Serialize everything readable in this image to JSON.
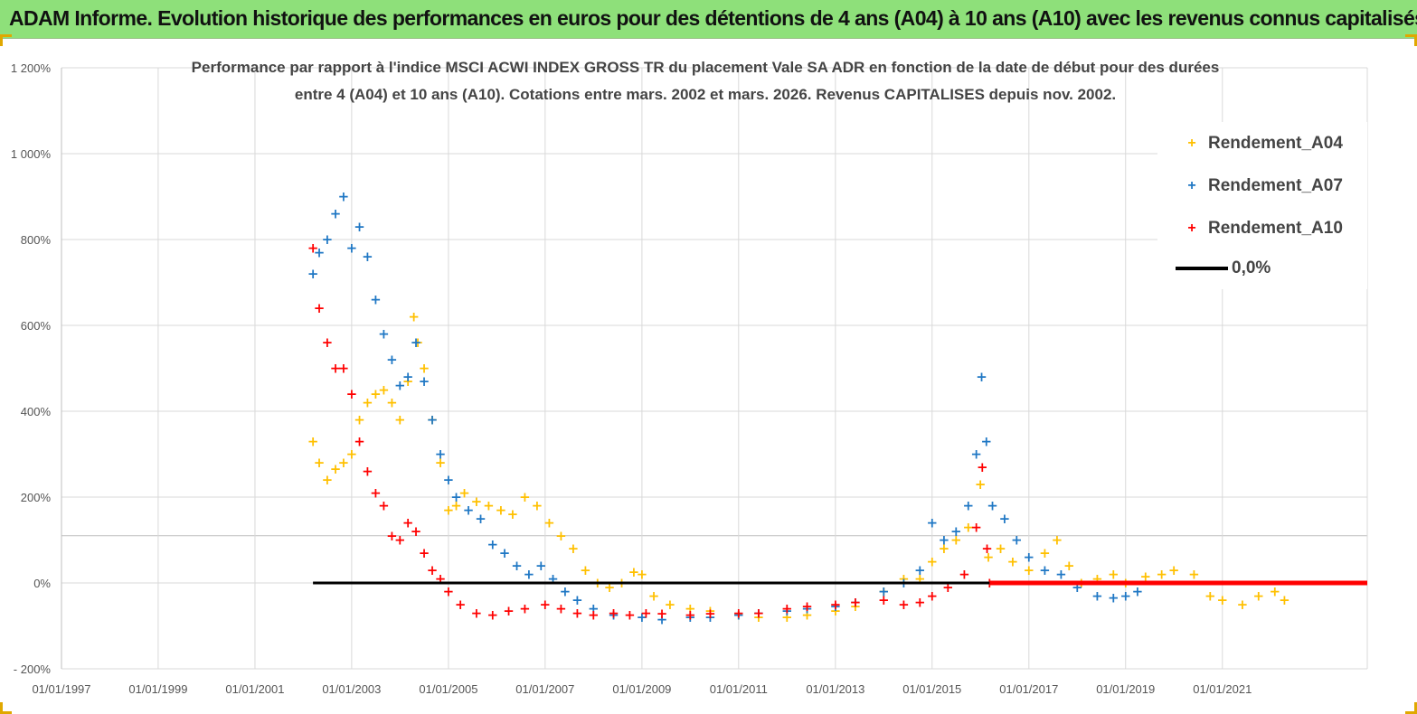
{
  "banner": {
    "title": "ADAM Informe. Evolution historique des performances en euros pour des détentions de 4 ans (A04) à 10 ans (A10) avec les revenus connus capitalisés"
  },
  "colors": {
    "banner_bg": "#8ee07a",
    "A04": "#ffc000",
    "A07": "#1f77c4",
    "A10": "#ff0000",
    "zero_line": "#000000",
    "grid": "#d9d9d9"
  },
  "chart_data": {
    "type": "scatter",
    "title_lines": [
      "Performance par rapport à l'indice MSCI ACWI INDEX GROSS TR  du placement Vale SA ADR en fonction de la date de début pour des durées",
      "entre 4 (A04) et 10 ans (A10). Cotations entre mars. 2002 et mars. 2026. Revenus CAPITALISES depuis nov. 2002."
    ],
    "y_ticks": [
      "- 200%",
      "0%",
      "200%",
      "400%",
      "600%",
      "800%",
      "1 000%",
      "1 200%"
    ],
    "y_tick_values": [
      -200,
      0,
      200,
      400,
      600,
      800,
      1000,
      1200
    ],
    "ylim": [
      -200,
      1200
    ],
    "x_ticks": [
      "01/01/1997",
      "01/01/1999",
      "01/01/2001",
      "01/01/2003",
      "01/01/2005",
      "01/01/2007",
      "01/01/2009",
      "01/01/2011",
      "01/01/2013",
      "01/01/2015",
      "01/01/2017",
      "01/01/2019",
      "01/01/2021"
    ],
    "xlim": [
      "1997-01-01",
      "2023-12-31"
    ],
    "grid": true,
    "legend_position": "top-right",
    "series": [
      {
        "name": "Rendement_A04",
        "marker": "+",
        "points": [
          [
            "2002-03-15",
            330
          ],
          [
            "2002-05-01",
            280
          ],
          [
            "2002-07-01",
            240
          ],
          [
            "2002-09-01",
            265
          ],
          [
            "2002-11-01",
            280
          ],
          [
            "2003-01-01",
            300
          ],
          [
            "2003-03-01",
            380
          ],
          [
            "2003-05-01",
            420
          ],
          [
            "2003-07-01",
            440
          ],
          [
            "2003-09-01",
            450
          ],
          [
            "2003-11-01",
            420
          ],
          [
            "2004-01-01",
            380
          ],
          [
            "2004-03-01",
            470
          ],
          [
            "2004-04-15",
            620
          ],
          [
            "2004-05-15",
            560
          ],
          [
            "2004-07-01",
            500
          ],
          [
            "2004-09-01",
            380
          ],
          [
            "2004-11-01",
            280
          ],
          [
            "2005-01-01",
            170
          ],
          [
            "2005-03-01",
            180
          ],
          [
            "2005-05-01",
            210
          ],
          [
            "2005-08-01",
            190
          ],
          [
            "2005-11-01",
            180
          ],
          [
            "2006-02-01",
            170
          ],
          [
            "2006-05-01",
            160
          ],
          [
            "2006-08-01",
            200
          ],
          [
            "2006-11-01",
            180
          ],
          [
            "2007-02-01",
            140
          ],
          [
            "2007-05-01",
            110
          ],
          [
            "2007-08-01",
            80
          ],
          [
            "2007-11-01",
            30
          ],
          [
            "2008-02-01",
            0
          ],
          [
            "2008-05-01",
            -10
          ],
          [
            "2008-08-01",
            0
          ],
          [
            "2008-11-01",
            25
          ],
          [
            "2009-01-01",
            20
          ],
          [
            "2009-04-01",
            -30
          ],
          [
            "2009-08-01",
            -50
          ],
          [
            "2010-01-01",
            -60
          ],
          [
            "2010-06-01",
            -65
          ],
          [
            "2011-01-01",
            -75
          ],
          [
            "2011-06-01",
            -80
          ],
          [
            "2012-01-01",
            -80
          ],
          [
            "2012-06-01",
            -75
          ],
          [
            "2013-01-01",
            -65
          ],
          [
            "2013-06-01",
            -55
          ],
          [
            "2014-01-01",
            -20
          ],
          [
            "2014-06-01",
            10
          ],
          [
            "2014-10-01",
            10
          ],
          [
            "2015-01-01",
            50
          ],
          [
            "2015-04-01",
            80
          ],
          [
            "2015-07-01",
            100
          ],
          [
            "2015-10-01",
            130
          ],
          [
            "2016-01-01",
            230
          ],
          [
            "2016-03-01",
            60
          ],
          [
            "2016-06-01",
            80
          ],
          [
            "2016-09-01",
            50
          ],
          [
            "2017-01-01",
            30
          ],
          [
            "2017-05-01",
            70
          ],
          [
            "2017-08-01",
            100
          ],
          [
            "2017-11-01",
            40
          ],
          [
            "2018-02-01",
            0
          ],
          [
            "2018-06-01",
            10
          ],
          [
            "2018-10-01",
            20
          ],
          [
            "2019-01-01",
            0
          ],
          [
            "2019-06-01",
            15
          ],
          [
            "2019-10-01",
            20
          ],
          [
            "2020-01-01",
            30
          ],
          [
            "2020-06-01",
            20
          ],
          [
            "2020-10-01",
            -30
          ],
          [
            "2021-01-01",
            -40
          ],
          [
            "2021-06-01",
            -50
          ],
          [
            "2021-10-01",
            -30
          ],
          [
            "2022-02-01",
            -20
          ],
          [
            "2022-04-15",
            -40
          ]
        ]
      },
      {
        "name": "Rendement_A07",
        "marker": "+",
        "points": [
          [
            "2002-03-15",
            720
          ],
          [
            "2002-05-01",
            770
          ],
          [
            "2002-07-01",
            800
          ],
          [
            "2002-09-01",
            860
          ],
          [
            "2002-11-01",
            900
          ],
          [
            "2003-01-01",
            780
          ],
          [
            "2003-03-01",
            830
          ],
          [
            "2003-05-01",
            760
          ],
          [
            "2003-07-01",
            660
          ],
          [
            "2003-09-01",
            580
          ],
          [
            "2003-11-01",
            520
          ],
          [
            "2004-01-01",
            460
          ],
          [
            "2004-03-01",
            480
          ],
          [
            "2004-05-01",
            560
          ],
          [
            "2004-07-01",
            470
          ],
          [
            "2004-09-01",
            380
          ],
          [
            "2004-11-01",
            300
          ],
          [
            "2005-01-01",
            240
          ],
          [
            "2005-03-01",
            200
          ],
          [
            "2005-06-01",
            170
          ],
          [
            "2005-09-01",
            150
          ],
          [
            "2005-12-01",
            90
          ],
          [
            "2006-03-01",
            70
          ],
          [
            "2006-06-01",
            40
          ],
          [
            "2006-09-01",
            20
          ],
          [
            "2006-12-01",
            40
          ],
          [
            "2007-03-01",
            10
          ],
          [
            "2007-06-01",
            -20
          ],
          [
            "2007-09-01",
            -40
          ],
          [
            "2008-01-01",
            -60
          ],
          [
            "2008-06-01",
            -75
          ],
          [
            "2009-01-01",
            -80
          ],
          [
            "2009-06-01",
            -85
          ],
          [
            "2010-01-01",
            -80
          ],
          [
            "2010-06-01",
            -80
          ],
          [
            "2011-01-01",
            -75
          ],
          [
            "2011-06-01",
            -70
          ],
          [
            "2012-01-01",
            -65
          ],
          [
            "2012-06-01",
            -60
          ],
          [
            "2013-01-01",
            -55
          ],
          [
            "2013-06-01",
            -45
          ],
          [
            "2014-01-01",
            -20
          ],
          [
            "2014-06-01",
            0
          ],
          [
            "2014-10-01",
            30
          ],
          [
            "2015-01-01",
            140
          ],
          [
            "2015-04-01",
            100
          ],
          [
            "2015-07-01",
            120
          ],
          [
            "2015-10-01",
            180
          ],
          [
            "2015-12-01",
            300
          ],
          [
            "2016-01-10",
            480
          ],
          [
            "2016-02-15",
            330
          ],
          [
            "2016-04-01",
            180
          ],
          [
            "2016-07-01",
            150
          ],
          [
            "2016-10-01",
            100
          ],
          [
            "2017-01-01",
            60
          ],
          [
            "2017-05-01",
            30
          ],
          [
            "2017-09-01",
            20
          ],
          [
            "2018-01-01",
            -10
          ],
          [
            "2018-06-01",
            -30
          ],
          [
            "2018-10-01",
            -35
          ],
          [
            "2019-01-01",
            -30
          ],
          [
            "2019-04-01",
            -20
          ]
        ]
      },
      {
        "name": "Rendement_A10",
        "marker": "+",
        "points": [
          [
            "2002-03-15",
            780
          ],
          [
            "2002-05-01",
            640
          ],
          [
            "2002-07-01",
            560
          ],
          [
            "2002-09-01",
            500
          ],
          [
            "2002-11-01",
            500
          ],
          [
            "2003-01-01",
            440
          ],
          [
            "2003-03-01",
            330
          ],
          [
            "2003-05-01",
            260
          ],
          [
            "2003-07-01",
            210
          ],
          [
            "2003-09-01",
            180
          ],
          [
            "2003-11-01",
            110
          ],
          [
            "2004-01-01",
            100
          ],
          [
            "2004-03-01",
            140
          ],
          [
            "2004-05-01",
            120
          ],
          [
            "2004-07-01",
            70
          ],
          [
            "2004-09-01",
            30
          ],
          [
            "2004-11-01",
            10
          ],
          [
            "2005-01-01",
            -20
          ],
          [
            "2005-04-01",
            -50
          ],
          [
            "2005-08-01",
            -70
          ],
          [
            "2005-12-01",
            -75
          ],
          [
            "2006-04-01",
            -65
          ],
          [
            "2006-08-01",
            -60
          ],
          [
            "2007-01-01",
            -50
          ],
          [
            "2007-05-01",
            -60
          ],
          [
            "2007-09-01",
            -70
          ],
          [
            "2008-01-01",
            -75
          ],
          [
            "2008-06-01",
            -70
          ],
          [
            "2008-10-01",
            -75
          ],
          [
            "2009-02-01",
            -70
          ],
          [
            "2009-06-01",
            -72
          ],
          [
            "2010-01-01",
            -75
          ],
          [
            "2010-06-01",
            -72
          ],
          [
            "2011-01-01",
            -70
          ],
          [
            "2011-06-01",
            -70
          ],
          [
            "2012-01-01",
            -60
          ],
          [
            "2012-06-01",
            -55
          ],
          [
            "2013-01-01",
            -50
          ],
          [
            "2013-06-01",
            -45
          ],
          [
            "2014-01-01",
            -40
          ],
          [
            "2014-06-01",
            -50
          ],
          [
            "2014-10-01",
            -45
          ],
          [
            "2015-01-01",
            -30
          ],
          [
            "2015-05-01",
            -10
          ],
          [
            "2015-09-01",
            20
          ],
          [
            "2015-12-01",
            130
          ],
          [
            "2016-01-15",
            270
          ],
          [
            "2016-02-20",
            80
          ],
          [
            "2016-03-10",
            0
          ]
        ]
      }
    ],
    "reference_lines": [
      {
        "name": "0,0%",
        "y": 0,
        "x_from": "2002-03-15",
        "x_to": "2023-12-31"
      }
    ],
    "flat_segments": [
      {
        "series": "Rendement_A10",
        "y": 0,
        "x_from": "2016-03-10",
        "x_to": "2023-12-31"
      }
    ]
  },
  "legend": {
    "items": [
      {
        "label": "Rendement_A04",
        "marker": "+",
        "color": "#ffc000"
      },
      {
        "label": "Rendement_A07",
        "marker": "+",
        "color": "#1f77c4"
      },
      {
        "label": "Rendement_A10",
        "marker": "+",
        "color": "#ff0000"
      },
      {
        "label": "0,0%",
        "marker": "line",
        "color": "#000000"
      }
    ]
  }
}
